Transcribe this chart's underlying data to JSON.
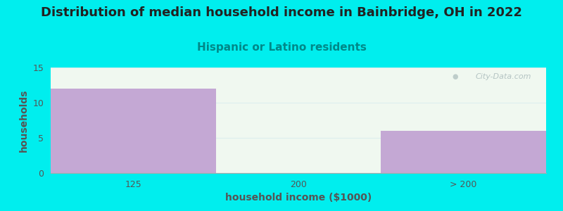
{
  "categories": [
    "125",
    "200",
    "> 200"
  ],
  "values": [
    12,
    0,
    6
  ],
  "bar_color": "#c4a8d4",
  "bar_edgecolor": "#c4a8d4",
  "background_color": "#00eeee",
  "plot_bg_color": "#f0f8f0",
  "title": "Distribution of median household income in Bainbridge, OH in 2022",
  "subtitle": "Hispanic or Latino residents",
  "subtitle_color": "#008888",
  "xlabel": "household income ($1000)",
  "ylabel": "households",
  "ylim": [
    0,
    15
  ],
  "yticks": [
    0,
    5,
    10,
    15
  ],
  "title_fontsize": 13,
  "subtitle_fontsize": 11,
  "label_fontsize": 10,
  "tick_fontsize": 9,
  "watermark": "City-Data.com",
  "watermark_color": "#aabbbb",
  "axis_color": "#555555",
  "grid_color": "#ddeeee"
}
